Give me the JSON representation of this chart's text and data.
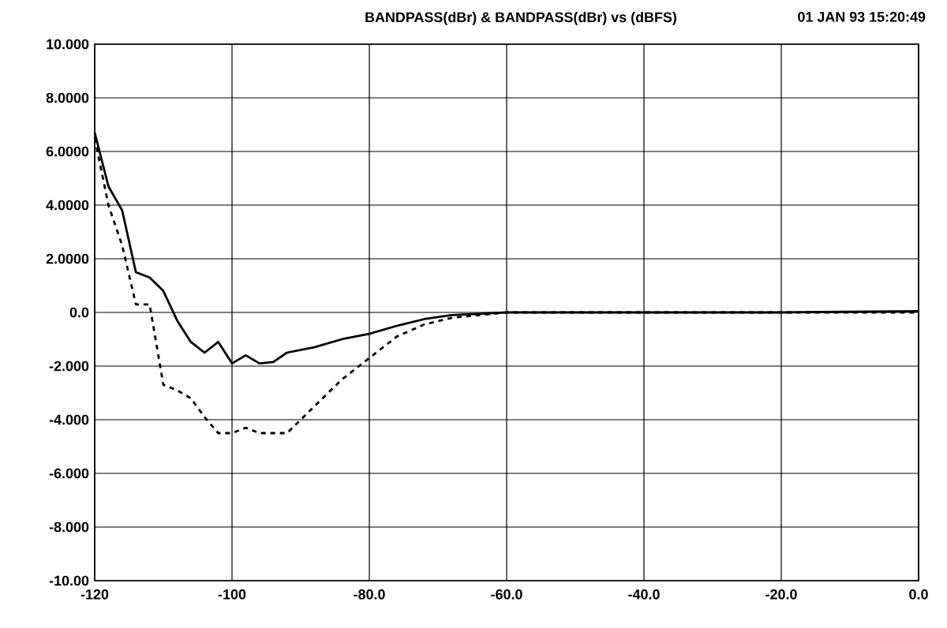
{
  "chart_data": {
    "type": "line",
    "title": "BANDPASS(dBr) & BANDPASS(dBr) vs (dBFS)",
    "annotations": [
      "01 JAN 93 15:20:49"
    ],
    "xlim": [
      -120,
      0
    ],
    "xticks": [
      -120,
      -100,
      {
        "value": -80,
        "label": "-80.0"
      },
      {
        "value": -60,
        "label": "-60.0"
      },
      {
        "value": -40,
        "label": "-40.0"
      },
      {
        "value": -20,
        "label": "-20.0"
      },
      {
        "value": 0,
        "label": "0.0"
      }
    ],
    "ylim": [
      -10,
      10
    ],
    "yticks": [
      {
        "value": -10,
        "label": "-10.00"
      },
      {
        "value": -8,
        "label": "-8.000"
      },
      {
        "value": -6,
        "label": "-6.000"
      },
      {
        "value": -4,
        "label": "-4.000"
      },
      {
        "value": -2,
        "label": "-2.000"
      },
      {
        "value": 0,
        "label": "0.0"
      },
      {
        "value": 2,
        "label": "2.0000"
      },
      {
        "value": 4,
        "label": "4.0000"
      },
      {
        "value": 6,
        "label": "6.0000"
      },
      {
        "value": 8,
        "label": "8.0000"
      },
      {
        "value": 10,
        "label": "10.000"
      }
    ],
    "grid": true,
    "series": [
      {
        "color": "#000000",
        "line_style": "solid",
        "x": [
          -120,
          -118,
          -116,
          -114,
          -112,
          -110,
          -108,
          -106,
          -104,
          -102,
          -100,
          -98,
          -96,
          -94,
          -92,
          -88,
          -84,
          -80,
          -76,
          -72,
          -68,
          -60,
          -40,
          -20,
          0
        ],
        "values": [
          6.7,
          4.7,
          3.8,
          1.5,
          1.3,
          0.8,
          -0.3,
          -1.1,
          -1.5,
          -1.1,
          -1.9,
          -1.6,
          -1.9,
          -1.85,
          -1.5,
          -1.3,
          -1.0,
          -0.8,
          -0.5,
          -0.25,
          -0.1,
          0,
          0,
          0,
          0.05
        ]
      },
      {
        "color": "#000000",
        "line_style": "dashed",
        "x": [
          -120,
          -118,
          -116,
          -114,
          -112,
          -110,
          -108,
          -106,
          -104,
          -102,
          -100,
          -98,
          -96,
          -92,
          -88,
          -84,
          -80,
          -76,
          -72,
          -68,
          -64,
          -60,
          -40,
          0
        ],
        "values": [
          6.5,
          4.0,
          2.5,
          0.3,
          0.3,
          -2.7,
          -2.9,
          -3.2,
          -3.9,
          -4.5,
          -4.5,
          -4.3,
          -4.5,
          -4.5,
          -3.5,
          -2.5,
          -1.7,
          -0.9,
          -0.45,
          -0.2,
          -0.1,
          0,
          0,
          0
        ]
      }
    ]
  }
}
